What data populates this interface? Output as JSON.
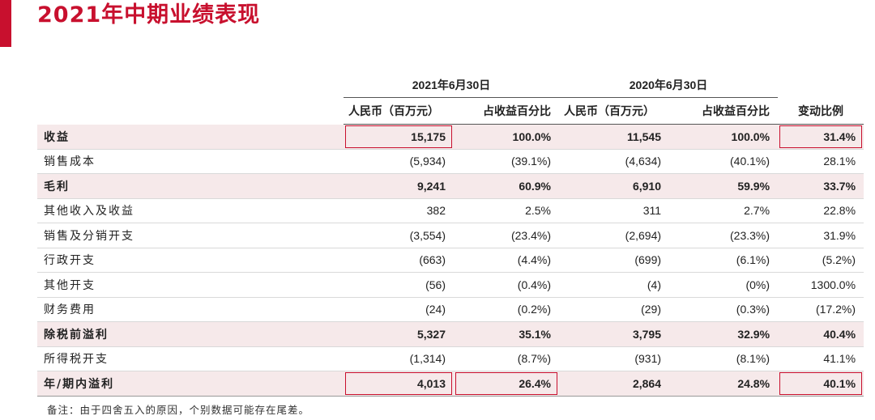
{
  "title": "2021年中期业绩表现",
  "periods": [
    "2021年6月30日",
    "2020年6月30日"
  ],
  "subheaders": [
    "人民币（百万元）",
    "占收益百分比",
    "人民币（百万元）",
    "占收益百分比",
    "变动比例"
  ],
  "rows": [
    {
      "label": "收益",
      "cells": [
        "15,175",
        "100.0%",
        "11,545",
        "100.0%",
        "31.4%"
      ]
    },
    {
      "label": "销售成本",
      "cells": [
        "(5,934)",
        "(39.1%)",
        "(4,634)",
        "(40.1%)",
        "28.1%"
      ]
    },
    {
      "label": "毛利",
      "cells": [
        "9,241",
        "60.9%",
        "6,910",
        "59.9%",
        "33.7%"
      ]
    },
    {
      "label": "其他收入及收益",
      "cells": [
        "382",
        "2.5%",
        "311",
        "2.7%",
        "22.8%"
      ]
    },
    {
      "label": "销售及分销开支",
      "cells": [
        "(3,554)",
        "(23.4%)",
        "(2,694)",
        "(23.3%)",
        "31.9%"
      ]
    },
    {
      "label": "行政开支",
      "cells": [
        "(663)",
        "(4.4%)",
        "(699)",
        "(6.1%)",
        "(5.2%)"
      ]
    },
    {
      "label": "其他开支",
      "cells": [
        "(56)",
        "(0.4%)",
        "(4)",
        "(0%)",
        "1300.0%"
      ]
    },
    {
      "label": "财务费用",
      "cells": [
        "(24)",
        "(0.2%)",
        "(29)",
        "(0.3%)",
        "(17.2%)"
      ]
    },
    {
      "label": "除税前溢利",
      "cells": [
        "5,327",
        "35.1%",
        "3,795",
        "32.9%",
        "40.4%"
      ]
    },
    {
      "label": "所得税开支",
      "cells": [
        "(1,314)",
        "(8.7%)",
        "(931)",
        "(8.1%)",
        "41.1%"
      ]
    },
    {
      "label": "年/期内溢利",
      "cells": [
        "4,013",
        "26.4%",
        "2,864",
        "24.8%",
        "40.1%"
      ]
    }
  ],
  "note": "备注：由于四舍五入的原因，个别数据可能存在尾差。",
  "colors": {
    "accent": "#c8102e",
    "highlight_row": "#f6e9ea"
  }
}
